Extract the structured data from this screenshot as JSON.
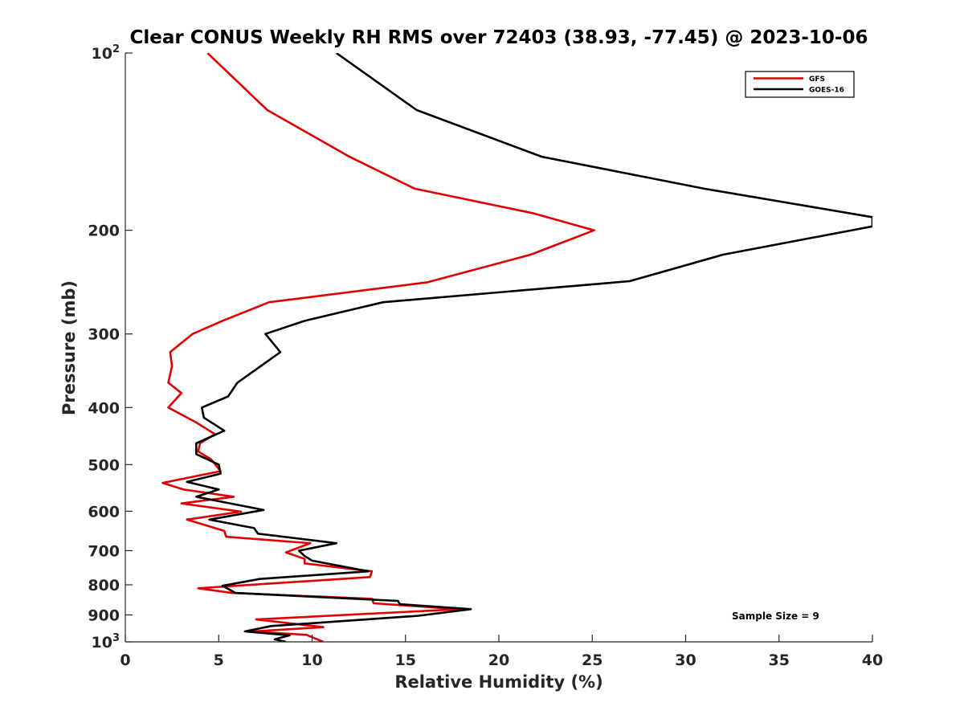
{
  "chart_data": {
    "type": "line",
    "title": "Clear CONUS Weekly RH RMS over 72403 (38.93, -77.45) @ 2023-10-06",
    "xlabel": "Relative Humidity (%)",
    "ylabel": "Pressure (mb)",
    "xlim": [
      0,
      40
    ],
    "ylim": [
      100,
      1000
    ],
    "y_scale": "log",
    "y_reversed": true,
    "grid": false,
    "legend_position": "top-right",
    "x_ticks": [
      "0",
      "5",
      "10",
      "15",
      "20",
      "25",
      "30",
      "35",
      "40"
    ],
    "y_ticks": [
      {
        "value": 100,
        "base": "10",
        "exp": "2"
      },
      {
        "value": 200,
        "label": "200"
      },
      {
        "value": 300,
        "label": "300"
      },
      {
        "value": 400,
        "label": "400"
      },
      {
        "value": 500,
        "label": "500"
      },
      {
        "value": 600,
        "label": "600"
      },
      {
        "value": 700,
        "label": "700"
      },
      {
        "value": 800,
        "label": "800"
      },
      {
        "value": 900,
        "label": "900"
      },
      {
        "value": 1000,
        "base": "10",
        "exp": "3"
      }
    ],
    "annotation": "Sample Size = 9",
    "series": [
      {
        "name": "GFS",
        "color": "#e00000",
        "points": [
          [
            4.4,
            100
          ],
          [
            7.6,
            125
          ],
          [
            12.0,
            150
          ],
          [
            15.5,
            170
          ],
          [
            21.8,
            187
          ],
          [
            25.1,
            200
          ],
          [
            21.7,
            220
          ],
          [
            16.2,
            245
          ],
          [
            7.7,
            265
          ],
          [
            5.2,
            285
          ],
          [
            3.6,
            300
          ],
          [
            2.4,
            322
          ],
          [
            2.5,
            340
          ],
          [
            2.3,
            363
          ],
          [
            3.0,
            378
          ],
          [
            2.3,
            400
          ],
          [
            3.8,
            424
          ],
          [
            4.8,
            444
          ],
          [
            4.0,
            460
          ],
          [
            3.9,
            475
          ],
          [
            4.6,
            490
          ],
          [
            5.1,
            513
          ],
          [
            2.0,
            537
          ],
          [
            3.1,
            551
          ],
          [
            5.8,
            567
          ],
          [
            3.0,
            582
          ],
          [
            6.2,
            601
          ],
          [
            3.3,
            620
          ],
          [
            5.3,
            648
          ],
          [
            5.4,
            663
          ],
          [
            9.9,
            680
          ],
          [
            8.6,
            705
          ],
          [
            9.6,
            723
          ],
          [
            9.6,
            736
          ],
          [
            13.2,
            759
          ],
          [
            13.1,
            776
          ],
          [
            3.9,
            811
          ],
          [
            5.7,
            826
          ],
          [
            13.2,
            845
          ],
          [
            13.3,
            860
          ],
          [
            17.9,
            880
          ],
          [
            7.0,
            916
          ],
          [
            10.6,
            944
          ],
          [
            6.8,
            960
          ],
          [
            9.7,
            973
          ],
          [
            10.6,
            1000
          ]
        ]
      },
      {
        "name": "GOES-16",
        "color": "#000000",
        "points": [
          [
            11.3,
            100
          ],
          [
            15.6,
            125
          ],
          [
            22.3,
            150
          ],
          [
            31.0,
            170
          ],
          [
            40.0,
            190
          ],
          [
            40.0,
            197
          ],
          [
            32.0,
            220
          ],
          [
            27.0,
            244
          ],
          [
            13.8,
            265
          ],
          [
            9.6,
            285
          ],
          [
            7.5,
            300
          ],
          [
            8.3,
            322
          ],
          [
            6.0,
            363
          ],
          [
            5.5,
            383
          ],
          [
            4.1,
            400
          ],
          [
            4.2,
            416
          ],
          [
            5.3,
            438
          ],
          [
            3.8,
            460
          ],
          [
            3.8,
            480
          ],
          [
            5.0,
            500
          ],
          [
            5.1,
            518
          ],
          [
            3.3,
            535
          ],
          [
            5.0,
            551
          ],
          [
            3.8,
            567
          ],
          [
            7.4,
            597
          ],
          [
            4.5,
            620
          ],
          [
            6.9,
            641
          ],
          [
            7.1,
            655
          ],
          [
            11.3,
            680
          ],
          [
            9.3,
            700
          ],
          [
            9.6,
            715
          ],
          [
            10.0,
            728
          ],
          [
            13.0,
            759
          ],
          [
            7.2,
            782
          ],
          [
            5.2,
            803
          ],
          [
            5.9,
            826
          ],
          [
            14.6,
            852
          ],
          [
            14.7,
            863
          ],
          [
            18.5,
            880
          ],
          [
            15.7,
            903
          ],
          [
            7.8,
            940
          ],
          [
            6.4,
            960
          ],
          [
            8.8,
            975
          ],
          [
            8.0,
            990
          ],
          [
            8.6,
            1000
          ]
        ]
      }
    ]
  }
}
